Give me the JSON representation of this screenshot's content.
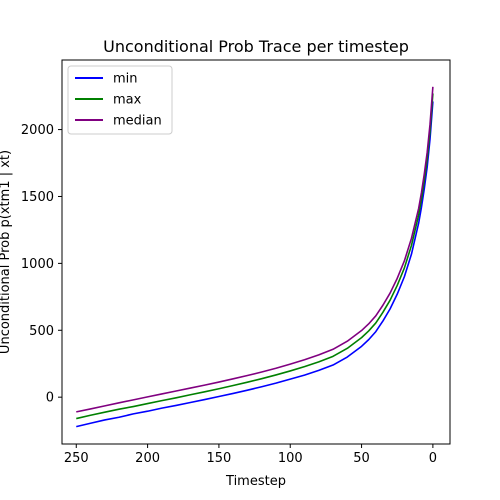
{
  "chart_data": {
    "type": "line",
    "title": "Unconditional Prob Trace per timestep",
    "xlabel": "Timestep",
    "ylabel": "Unconditional Prob p(xtm1 | xt)",
    "xlim": [
      260,
      -12
    ],
    "ylim": [
      -350,
      2520
    ],
    "x_inverted": true,
    "grid": false,
    "legend_position": "top-left",
    "xticks": [
      250,
      200,
      150,
      100,
      50,
      0
    ],
    "yticks": [
      0,
      500,
      1000,
      1500,
      2000
    ],
    "x": [
      250,
      240,
      230,
      220,
      210,
      200,
      190,
      180,
      170,
      160,
      150,
      140,
      130,
      120,
      110,
      100,
      90,
      80,
      70,
      60,
      50,
      45,
      40,
      35,
      30,
      25,
      20,
      15,
      10,
      8,
      6,
      4,
      2,
      1,
      0
    ],
    "series": [
      {
        "name": "min",
        "color": "#0000ff",
        "values": [
          -220,
          -195,
          -170,
          -150,
          -125,
          -105,
          -82,
          -62,
          -40,
          -18,
          5,
          28,
          52,
          78,
          105,
          135,
          165,
          200,
          240,
          300,
          380,
          430,
          490,
          570,
          660,
          770,
          900,
          1070,
          1300,
          1420,
          1560,
          1720,
          1930,
          2070,
          2210
        ]
      },
      {
        "name": "max",
        "color": "#008000",
        "values": [
          -160,
          -135,
          -112,
          -90,
          -70,
          -48,
          -26,
          -5,
          18,
          40,
          63,
          87,
          112,
          138,
          166,
          196,
          228,
          264,
          305,
          365,
          445,
          495,
          555,
          635,
          725,
          835,
          965,
          1135,
          1360,
          1480,
          1620,
          1780,
          1990,
          2130,
          2270
        ]
      },
      {
        "name": "median",
        "color": "#800080",
        "values": [
          -110,
          -88,
          -65,
          -42,
          -20,
          2,
          24,
          46,
          68,
          90,
          113,
          137,
          162,
          188,
          216,
          247,
          280,
          316,
          358,
          418,
          498,
          548,
          608,
          688,
          778,
          888,
          1018,
          1188,
          1410,
          1530,
          1670,
          1830,
          2040,
          2180,
          2320
        ]
      }
    ]
  }
}
